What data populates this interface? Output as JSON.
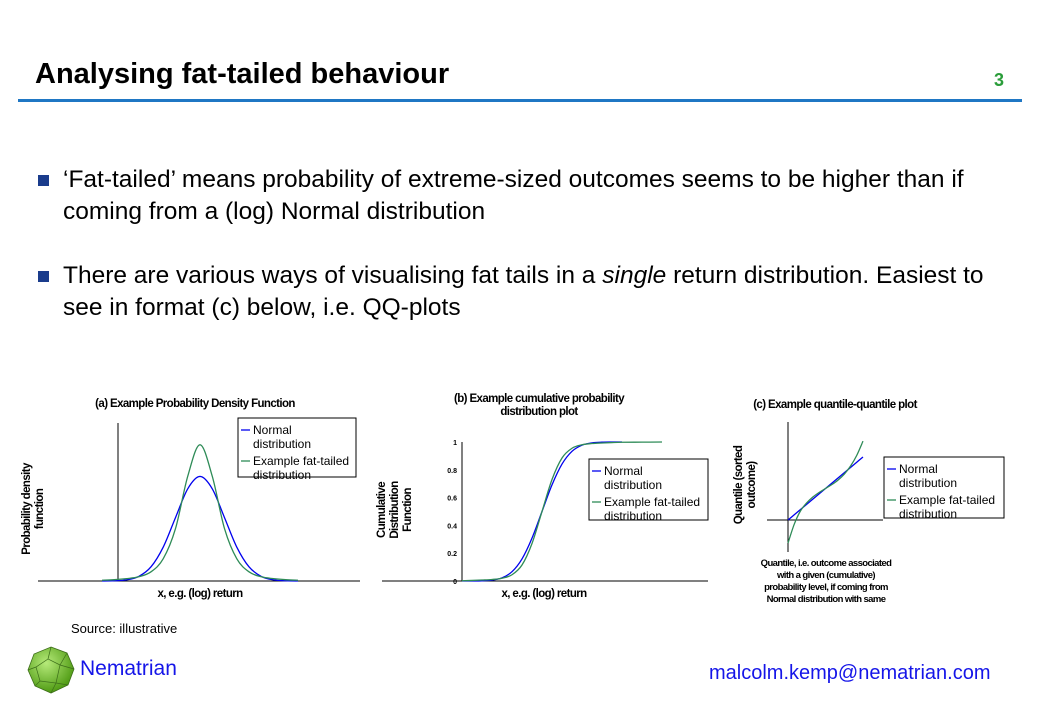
{
  "header": {
    "title": "Analysing fat-tailed behaviour",
    "page_number": "3"
  },
  "bullets": [
    {
      "parts": [
        {
          "text": "‘Fat-tailed’ means probability of extreme-sized outcomes seems to be higher than if coming from a (log) Normal distribution"
        }
      ]
    },
    {
      "pre": "There are various ways of visualising fat tails in a ",
      "em": "single",
      "post": " return distribution. Easiest to see in format (c) below, i.e. QQ-plots"
    }
  ],
  "footer": {
    "source": "Source: illustrative",
    "brand": "Nematrian",
    "email": "malcolm.kemp@nematrian.com"
  },
  "colors": {
    "normal": "#0000ee",
    "fat": "#2e8b57",
    "accent": "#1f77c4"
  },
  "chart_data": [
    {
      "type": "line",
      "title": "(a) Example Probability Density Function",
      "xlabel": "x, e.g. (log) return",
      "ylabel": "Probability density function",
      "x": [
        -4,
        -3.5,
        -3,
        -2.5,
        -2,
        -1.5,
        -1,
        -0.5,
        0,
        0.5,
        1,
        1.5,
        2,
        2.5,
        3,
        3.5,
        4
      ],
      "series": [
        {
          "name": "Normal distribution",
          "values": [
            0.0001,
            0.0009,
            0.0044,
            0.0175,
            0.054,
            0.1295,
            0.242,
            0.352,
            0.399,
            0.352,
            0.242,
            0.1295,
            0.054,
            0.0175,
            0.0044,
            0.0009,
            0.0001
          ]
        },
        {
          "name": "Example fat-tailed distribution",
          "values": [
            0.003,
            0.005,
            0.009,
            0.016,
            0.035,
            0.085,
            0.2,
            0.4,
            0.52,
            0.4,
            0.2,
            0.085,
            0.035,
            0.016,
            0.009,
            0.005,
            0.003
          ]
        }
      ],
      "legend": "top-right"
    },
    {
      "type": "line",
      "title": "(b) Example cumulative probability distribution plot",
      "xlabel": "x, e.g. (log) return",
      "ylabel": "Cumulative Distribution Function",
      "yticks": [
        "0",
        "0.2",
        "0.4",
        "0.6",
        "0.8",
        "1"
      ],
      "ylim": [
        0,
        1
      ],
      "x": [
        -4,
        -3.5,
        -3,
        -2.5,
        -2,
        -1.5,
        -1,
        -0.5,
        0,
        0.5,
        1,
        1.5,
        2,
        2.5,
        3,
        3.5,
        4,
        5,
        6
      ],
      "series": [
        {
          "name": "Normal distribution",
          "values": [
            0,
            0.0002,
            0.0013,
            0.0062,
            0.0228,
            0.0668,
            0.1587,
            0.3085,
            0.5,
            0.6915,
            0.8413,
            0.9332,
            0.9772,
            0.9938,
            0.9987,
            0.9998,
            1,
            null,
            null
          ]
        },
        {
          "name": "Example fat-tailed distribution",
          "values": [
            0.002,
            0.004,
            0.007,
            0.011,
            0.02,
            0.045,
            0.115,
            0.27,
            0.5,
            0.73,
            0.885,
            0.955,
            0.98,
            0.989,
            0.993,
            0.996,
            0.998,
            0.999,
            1
          ]
        }
      ],
      "legend": "right"
    },
    {
      "type": "line",
      "title": "(c) Example quantile-quantile plot",
      "xlabel": "Quantile, i.e. outcome associated with a given (cumulative) probability level, if coming from Normal distribution with same",
      "ylabel": "Quantile (sorted outcome)",
      "x": [
        -1.5,
        -1.25,
        -1,
        -0.75,
        -0.5,
        -0.25,
        0,
        0.25,
        0.5,
        0.75,
        1,
        1.25,
        1.5
      ],
      "series": [
        {
          "name": "Normal distribution",
          "values": [
            -1.5,
            -1.25,
            -1,
            -0.75,
            -0.5,
            -0.25,
            0,
            0.25,
            0.5,
            0.75,
            1,
            1.25,
            1.5
          ]
        },
        {
          "name": "Example fat-tailed distribution",
          "values": [
            -2.6,
            -1.7,
            -1.065,
            -0.684,
            -0.401,
            -0.184,
            0,
            0.184,
            0.401,
            0.684,
            1.065,
            1.578,
            2.254
          ]
        }
      ],
      "legend": "right"
    }
  ]
}
